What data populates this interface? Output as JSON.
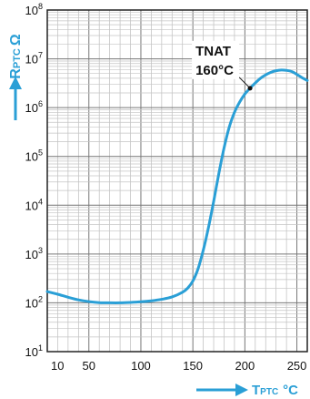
{
  "chart_data": {
    "type": "line",
    "title": "",
    "xlabel": {
      "main": "T",
      "sub": "PTC",
      "unit": "°C"
    },
    "ylabel": {
      "main": "R",
      "sub": "PTC",
      "unit": "Ω"
    },
    "xlim": [
      10,
      260
    ],
    "ylim": [
      10,
      100000000
    ],
    "yscale": "log",
    "grid": true,
    "x_ticks": [
      {
        "value": 10,
        "label": "10"
      },
      {
        "value": 50,
        "label": "50"
      },
      {
        "value": 100,
        "label": "100"
      },
      {
        "value": 150,
        "label": "150"
      },
      {
        "value": 200,
        "label": "200"
      },
      {
        "value": 250,
        "label": "250"
      }
    ],
    "y_ticks": [
      {
        "value": 10,
        "base": "10",
        "exp": "1"
      },
      {
        "value": 100,
        "base": "10",
        "exp": "2"
      },
      {
        "value": 1000,
        "base": "10",
        "exp": "3"
      },
      {
        "value": 10000,
        "base": "10",
        "exp": "4"
      },
      {
        "value": 100000,
        "base": "10",
        "exp": "5"
      },
      {
        "value": 1000000,
        "base": "10",
        "exp": "6"
      },
      {
        "value": 10000000,
        "base": "10",
        "exp": "7"
      },
      {
        "value": 100000000,
        "base": "10",
        "exp": "8"
      }
    ],
    "series": [
      {
        "color": "#2a9fd6",
        "x": [
          10,
          20,
          30,
          40,
          50,
          60,
          70,
          80,
          90,
          100,
          110,
          120,
          130,
          140,
          145,
          150,
          155,
          160,
          165,
          170,
          175,
          180,
          185,
          190,
          195,
          200,
          205,
          210,
          215,
          220,
          225,
          230,
          235,
          240,
          245,
          250,
          255,
          260
        ],
        "y": [
          170,
          150,
          130,
          115,
          106,
          101,
          100,
          100,
          102,
          105,
          110,
          118,
          132,
          165,
          200,
          280,
          500,
          1200,
          3500,
          12000,
          45000,
          150000,
          400000,
          800000,
          1300000,
          1900000,
          2500000,
          3200000,
          4000000,
          4700000,
          5300000,
          5700000,
          5900000,
          5800000,
          5500000,
          4800000,
          4100000,
          3600000
        ]
      }
    ],
    "annotations": [
      {
        "label": "TNAT",
        "value_label": "160°C",
        "x": 205,
        "y": 2500000
      }
    ]
  }
}
